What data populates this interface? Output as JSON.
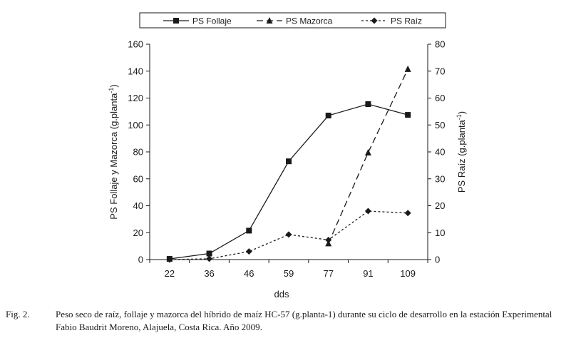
{
  "chart_data": {
    "type": "line",
    "categories": [
      "22",
      "36",
      "46",
      "59",
      "77",
      "91",
      "109"
    ],
    "xlabel": "dds",
    "ylabel_left": "PS Follaje y Mazorca (g.planta",
    "ylabel_right": "PS Raíz (g.planta",
    "ylabel_sup": "-1",
    "ylabel_close": ")",
    "ylim_left": [
      0,
      160
    ],
    "ylim_right": [
      0,
      80
    ],
    "yticks_left": [
      "0",
      "20",
      "40",
      "60",
      "80",
      "100",
      "120",
      "140",
      "160"
    ],
    "yticks_right": [
      "0",
      "10",
      "20",
      "30",
      "40",
      "50",
      "60",
      "70",
      "80"
    ],
    "legend_position": "top",
    "grid": false,
    "series": [
      {
        "name": "PS Follaje",
        "axis": "left",
        "marker": "square",
        "line": "solid",
        "values": [
          0.5,
          4.5,
          21.5,
          73,
          107,
          115.5,
          107.5
        ]
      },
      {
        "name": "PS Mazorca",
        "axis": "left",
        "marker": "triangle",
        "line": "dashed",
        "values": [
          null,
          null,
          null,
          null,
          12,
          79.5,
          141.5
        ]
      },
      {
        "name": "PS Raíz",
        "axis": "right",
        "marker": "diamond",
        "line": "dotted",
        "values": [
          0,
          0.3,
          3,
          9.3,
          7.3,
          18,
          17.3
        ]
      }
    ]
  },
  "caption": {
    "number": "Fig. 2.",
    "text": "Peso seco de raíz, follaje y mazorca del híbrido de maíz HC-57 (g.planta-1) durante su ciclo de desarrollo en la estación Experimental Fabio Baudrit Moreno, Alajuela, Costa Rica. Año 2009."
  }
}
